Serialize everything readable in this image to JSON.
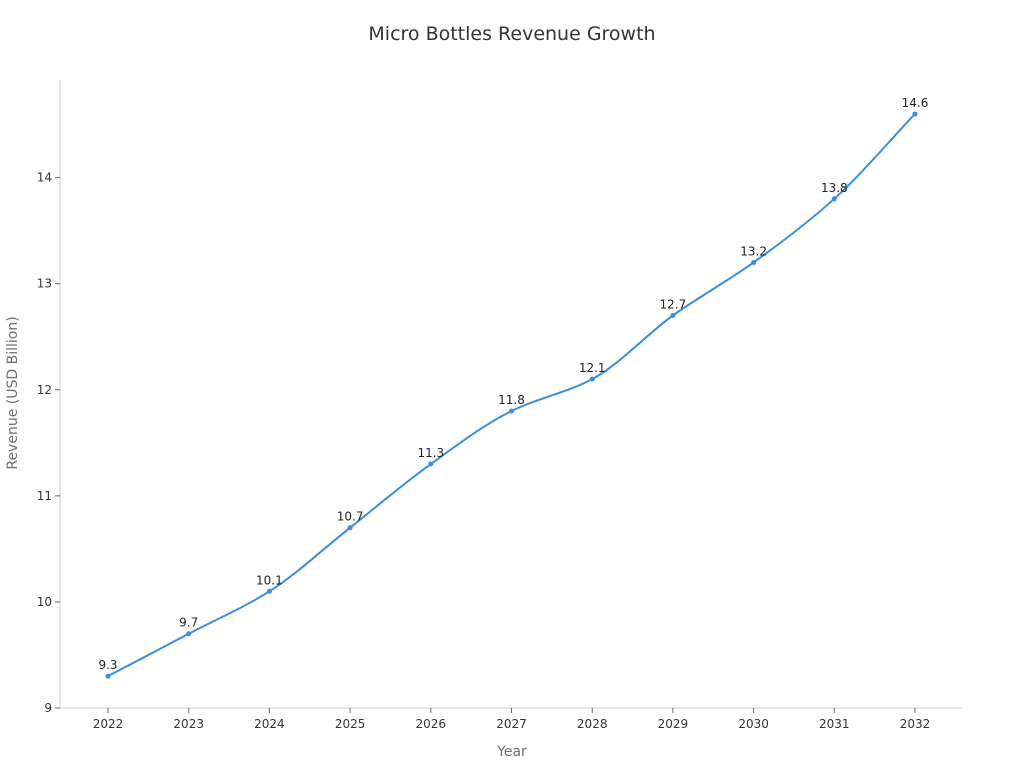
{
  "chart_data": {
    "type": "line",
    "title": "Micro Bottles Revenue Growth",
    "xlabel": "Year",
    "ylabel": "Revenue (USD Billion)",
    "categories": [
      "2022",
      "2023",
      "2024",
      "2025",
      "2026",
      "2027",
      "2028",
      "2029",
      "2030",
      "2031",
      "2032"
    ],
    "series": [
      {
        "values": [
          9.3,
          9.7,
          10.1,
          10.7,
          11.3,
          11.8,
          12.1,
          12.7,
          13.2,
          13.8,
          14.6
        ],
        "color": "#3b8fd9"
      }
    ],
    "data_labels": [
      "9.3",
      "9.7",
      "10.1",
      "10.7",
      "11.3",
      "11.8",
      "12.1",
      "12.7",
      "13.2",
      "13.8",
      "14.6"
    ],
    "y_ticks": [
      9,
      10,
      11,
      12,
      13,
      14
    ],
    "y_tick_labels": [
      "9",
      "10",
      "11",
      "12",
      "13",
      "14"
    ],
    "ylim": [
      9,
      14.92
    ],
    "grid": false,
    "legend": "none",
    "smooth": true
  }
}
